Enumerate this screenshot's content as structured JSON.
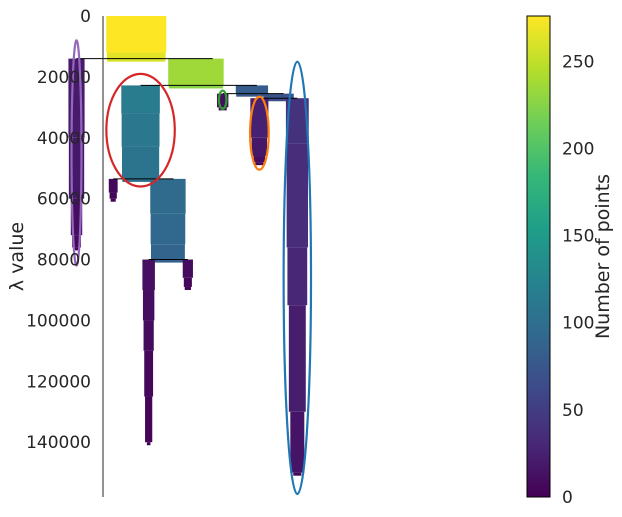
{
  "chart_data": {
    "type": "condensed-tree",
    "ylabel": "λ value",
    "colorbar_label": "Number of points",
    "y_ticks": [
      "0",
      "20000",
      "40000",
      "60000",
      "80000",
      "100000",
      "120000",
      "140000"
    ],
    "y_tick_values": [
      0,
      20000,
      40000,
      60000,
      80000,
      100000,
      120000,
      140000
    ],
    "ylim": [
      0,
      158000
    ],
    "colorbar_ticks": [
      "0",
      "50",
      "100",
      "150",
      "200",
      "250"
    ],
    "colorbar_tick_values": [
      0,
      50,
      100,
      150,
      200,
      250
    ],
    "colorbar_range": [
      0,
      276
    ],
    "colormap": [
      "#440154",
      "#482878",
      "#3e4989",
      "#31688e",
      "#26828e",
      "#1f9e89",
      "#35b779",
      "#6ece58",
      "#b5de2b",
      "#fde725"
    ],
    "splits": [
      {
        "lambda": 14000,
        "x0": 0.123,
        "x1": 0.342
      },
      {
        "lambda": 22800,
        "x0": 0.226,
        "x1": 0.413
      },
      {
        "lambda": 25500,
        "x0": 0.358,
        "x1": 0.456
      },
      {
        "lambda": 27000,
        "x0": 0.417,
        "x1": 0.478
      },
      {
        "lambda": 53500,
        "x0": 0.182,
        "x1": 0.279
      },
      {
        "lambda": 80000,
        "x0": 0.239,
        "x1": 0.302
      }
    ],
    "branches": [
      {
        "x": 0.219,
        "lambda_start": 0,
        "profile": [
          [
            0,
            276
          ],
          [
            12000,
            265
          ],
          [
            14000,
            260
          ]
        ]
      },
      {
        "x": 0.123,
        "lambda_start": 14000,
        "profile": [
          [
            14000,
            20
          ],
          [
            40000,
            18
          ],
          [
            60000,
            10
          ],
          [
            72000,
            6
          ],
          [
            76000,
            3
          ]
        ]
      },
      {
        "x": 0.315,
        "lambda_start": 14000,
        "profile": [
          [
            14000,
            236
          ],
          [
            22800,
            226
          ]
        ]
      },
      {
        "x": 0.226,
        "lambda_start": 22800,
        "profile": [
          [
            22800,
            114
          ],
          [
            32000,
            110
          ],
          [
            43000,
            106
          ],
          [
            53500,
            102
          ]
        ]
      },
      {
        "x": 0.405,
        "lambda_start": 22800,
        "profile": [
          [
            22800,
            80
          ],
          [
            25500,
            76
          ]
        ]
      },
      {
        "x": 0.358,
        "lambda_start": 25500,
        "profile": [
          [
            25500,
            10
          ],
          [
            30000,
            5
          ]
        ]
      },
      {
        "x": 0.448,
        "lambda_start": 25500,
        "profile": [
          [
            25500,
            70
          ],
          [
            27000,
            66
          ]
        ]
      },
      {
        "x": 0.417,
        "lambda_start": 27000,
        "profile": [
          [
            27000,
            25
          ],
          [
            40000,
            18
          ],
          [
            46000,
            10
          ],
          [
            48000,
            5
          ]
        ]
      },
      {
        "x": 0.478,
        "lambda_start": 27000,
        "profile": [
          [
            27000,
            40
          ],
          [
            42000,
            35
          ],
          [
            76000,
            30
          ],
          [
            95000,
            22
          ],
          [
            130000,
            15
          ],
          [
            150000,
            5
          ]
        ]
      },
      {
        "x": 0.182,
        "lambda_start": 53500,
        "profile": [
          [
            53500,
            6
          ],
          [
            58000,
            4
          ],
          [
            60000,
            2
          ]
        ]
      },
      {
        "x": 0.27,
        "lambda_start": 53500,
        "profile": [
          [
            53500,
            96
          ],
          [
            65000,
            92
          ],
          [
            75000,
            88
          ],
          [
            80000,
            84
          ]
        ]
      },
      {
        "x": 0.239,
        "lambda_start": 80000,
        "profile": [
          [
            80000,
            12
          ],
          [
            90000,
            10
          ],
          [
            100000,
            8
          ],
          [
            110000,
            6
          ],
          [
            125000,
            4
          ],
          [
            140000,
            1
          ]
        ]
      },
      {
        "x": 0.302,
        "lambda_start": 80000,
        "profile": [
          [
            80000,
            8
          ],
          [
            86000,
            5
          ],
          [
            89000,
            3
          ]
        ]
      }
    ],
    "selected_clusters": [
      {
        "color": "#9467bd",
        "x": 0.123,
        "lambda_center": 45000,
        "x_radius": 0.008,
        "lambda_radius": 37000
      },
      {
        "color": "#d62728",
        "x": 0.226,
        "lambda_center": 37500,
        "x_radius": 0.055,
        "lambda_radius": 18500
      },
      {
        "color": "#2ca02c",
        "x": 0.358,
        "lambda_center": 27500,
        "x_radius": 0.006,
        "lambda_radius": 3000
      },
      {
        "color": "#ff7f0e",
        "x": 0.417,
        "lambda_center": 38500,
        "x_radius": 0.015,
        "lambda_radius": 12000
      },
      {
        "color": "#1f77b4",
        "x": 0.478,
        "lambda_center": 86000,
        "x_radius": 0.022,
        "lambda_radius": 71000
      }
    ]
  }
}
